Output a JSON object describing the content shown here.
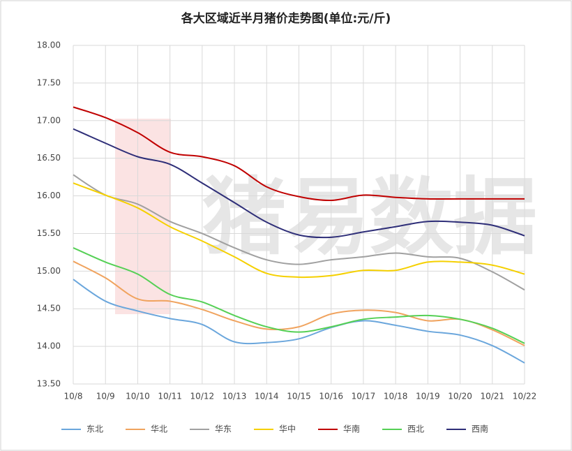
{
  "chart_data": {
    "type": "line",
    "title": "各大区域近半月猪价走势图(单位:元/斤)",
    "watermark": "猪易数据",
    "categories": [
      "10/8",
      "10/9",
      "10/10",
      "10/11",
      "10/12",
      "10/13",
      "10/14",
      "10/15",
      "10/16",
      "10/17",
      "10/18",
      "10/19",
      "10/20",
      "10/21",
      "10/22"
    ],
    "ylim": [
      13.5,
      18
    ],
    "yticks": [
      {
        "value": 13.5,
        "label": "13.50"
      },
      {
        "value": 14,
        "label": "14.00"
      },
      {
        "value": 14.5,
        "label": "14.50"
      },
      {
        "value": 15,
        "label": "15.00"
      },
      {
        "value": 15.5,
        "label": "15.50"
      },
      {
        "value": 16,
        "label": "16.00"
      },
      {
        "value": 16.5,
        "label": "16.50"
      },
      {
        "value": 17,
        "label": "17.00"
      },
      {
        "value": 17.5,
        "label": "17.50"
      },
      {
        "value": 18,
        "label": "18.00"
      }
    ],
    "grid": true,
    "legend": "bottom",
    "series": [
      {
        "name": "东北",
        "color": "#6aa6dc",
        "values": [
          14.89,
          14.6,
          14.47,
          14.37,
          14.29,
          14.06,
          14.05,
          14.1,
          14.25,
          14.34,
          14.28,
          14.2,
          14.15,
          14.01,
          13.78
        ]
      },
      {
        "name": "华北",
        "color": "#f0a35e",
        "values": [
          15.13,
          14.91,
          14.63,
          14.6,
          14.49,
          14.34,
          14.23,
          14.26,
          14.43,
          14.48,
          14.45,
          14.34,
          14.36,
          14.22,
          14.01
        ]
      },
      {
        "name": "华东",
        "color": "#a0a0a0",
        "values": [
          16.28,
          16.01,
          15.89,
          15.66,
          15.5,
          15.31,
          15.15,
          15.09,
          15.15,
          15.19,
          15.24,
          15.19,
          15.17,
          14.99,
          14.75
        ]
      },
      {
        "name": "华中",
        "color": "#f5d000",
        "values": [
          16.17,
          16.01,
          15.84,
          15.59,
          15.4,
          15.19,
          14.97,
          14.92,
          14.94,
          15.01,
          15.01,
          15.12,
          15.12,
          15.08,
          14.96
        ]
      },
      {
        "name": "华南",
        "color": "#c00000",
        "values": [
          17.18,
          17.04,
          16.84,
          16.58,
          16.52,
          16.4,
          16.12,
          15.99,
          15.94,
          16.01,
          15.98,
          15.96,
          15.96,
          15.96,
          15.96
        ]
      },
      {
        "name": "西北",
        "color": "#55d055",
        "values": [
          15.31,
          15.12,
          14.96,
          14.69,
          14.59,
          14.41,
          14.26,
          14.19,
          14.26,
          14.36,
          14.39,
          14.41,
          14.36,
          14.24,
          14.04
        ]
      },
      {
        "name": "西南",
        "color": "#2e2e78",
        "values": [
          16.89,
          16.7,
          16.52,
          16.42,
          16.17,
          15.91,
          15.65,
          15.48,
          15.45,
          15.52,
          15.59,
          15.66,
          15.65,
          15.61,
          15.47
        ]
      }
    ]
  }
}
